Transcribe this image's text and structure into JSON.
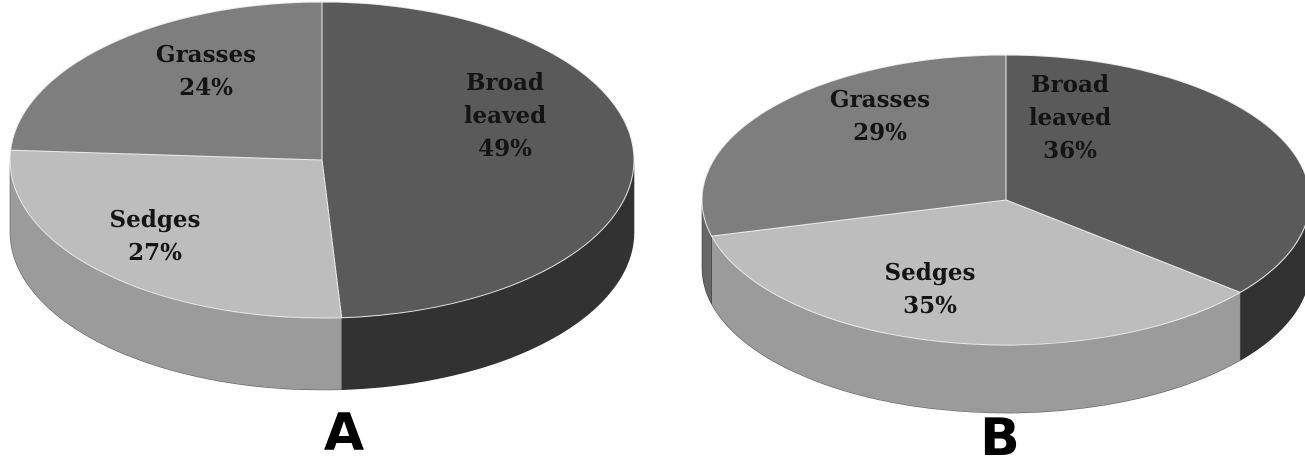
{
  "chart_data": [
    {
      "type": "pie",
      "panel_label": "A",
      "categories": [
        "Broad leaved",
        "Sedges",
        "Grasses"
      ],
      "values": [
        49,
        27,
        24
      ],
      "labels": [
        {
          "lines": [
            "Broad",
            "leaved",
            "49%"
          ]
        },
        {
          "lines": [
            "Sedges",
            "27%"
          ]
        },
        {
          "lines": [
            "Grasses",
            "24%"
          ]
        }
      ],
      "colors": [
        "#5a5a5a",
        "#bdbdbd",
        "#7e7e7e"
      ],
      "legend": "none"
    },
    {
      "type": "pie",
      "panel_label": "B",
      "categories": [
        "Broad leaved",
        "Sedges",
        "Grasses"
      ],
      "values": [
        36,
        35,
        29
      ],
      "labels": [
        {
          "lines": [
            "Broad",
            "leaved",
            "36%"
          ]
        },
        {
          "lines": [
            "Sedges",
            "35%"
          ]
        },
        {
          "lines": [
            "Grasses",
            "29%"
          ]
        }
      ],
      "colors": [
        "#5a5a5a",
        "#bdbdbd",
        "#7e7e7e"
      ],
      "legend": "none"
    }
  ]
}
